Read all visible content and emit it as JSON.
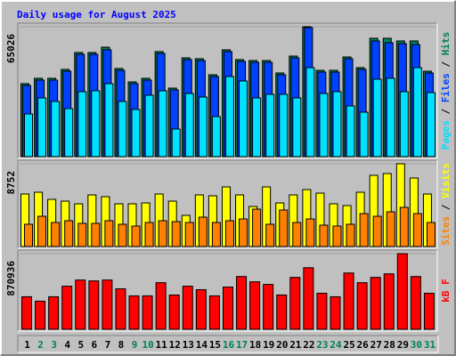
{
  "chart_data": [
    {
      "type": "bar",
      "title": "Daily usage for August 2025",
      "categories": [
        "1",
        "2",
        "3",
        "4",
        "5",
        "6",
        "7",
        "8",
        "9",
        "10",
        "11",
        "12",
        "13",
        "14",
        "15",
        "16",
        "17",
        "18",
        "19",
        "20",
        "21",
        "22",
        "23",
        "24",
        "25",
        "26",
        "27",
        "28",
        "29",
        "30",
        "31"
      ],
      "label_colors": [
        "#000000",
        "#00805c",
        "#00805c",
        "#000000",
        "#000000",
        "#000000",
        "#000000",
        "#000000",
        "#00805c",
        "#00805c",
        "#000000",
        "#000000",
        "#000000",
        "#000000",
        "#000000",
        "#00805c",
        "#00805c",
        "#000000",
        "#000000",
        "#000000",
        "#000000",
        "#000000",
        "#00805c",
        "#00805c",
        "#000000",
        "#000000",
        "#000000",
        "#000000",
        "#000000",
        "#00805c",
        "#00805c"
      ],
      "legend_separator": " / ",
      "ylim": [
        0,
        65026
      ],
      "yticks": [
        65026
      ],
      "series": [
        {
          "name": "Hits",
          "color": "#00805c",
          "values": [
            36520,
            39200,
            39200,
            43650,
            52110,
            52110,
            54780,
            44090,
            37410,
            39200,
            52560,
            34300,
            49440,
            48990,
            40980,
            53450,
            48550,
            48100,
            48100,
            41870,
            50330,
            65026,
            43200,
            43200,
            49880,
            44540,
            59240,
            59240,
            57900,
            57900,
            42760
          ]
        },
        {
          "name": "Files",
          "color": "#0040ff",
          "values": [
            35630,
            38300,
            38300,
            42760,
            51220,
            51220,
            53450,
            43200,
            36520,
            38300,
            51670,
            33400,
            48550,
            48100,
            40090,
            52560,
            47660,
            47210,
            47210,
            40980,
            49440,
            64580,
            42310,
            42310,
            48990,
            43650,
            57900,
            57010,
            56570,
            56120,
            41870
          ]
        },
        {
          "name": "Pages",
          "color": "#00e0ff",
          "values": [
            21380,
            29400,
            27610,
            24050,
            32510,
            32960,
            36520,
            27610,
            23610,
            30730,
            32960,
            13810,
            31620,
            29840,
            20040,
            40090,
            37860,
            29400,
            31180,
            31180,
            29400,
            44540,
            31620,
            32510,
            25390,
            22270,
            38750,
            39200,
            32510,
            44540,
            32070
          ]
        }
      ]
    },
    {
      "type": "bar",
      "ylim": [
        0,
        8752
      ],
      "yticks": [
        8752
      ],
      "series": [
        {
          "name": "Visits",
          "color": "#ffff00",
          "values": [
            5552,
            5740,
            4987,
            4799,
            4517,
            5458,
            5270,
            4517,
            4517,
            4611,
            5552,
            4799,
            3294,
            5458,
            5364,
            6305,
            5458,
            4235,
            6305,
            4611,
            5458,
            6022,
            5646,
            4517,
            4329,
            5740,
            7528,
            7716,
            8752,
            7246,
            5552
          ]
        },
        {
          "name": "Sites",
          "color": "#ff8000",
          "values": [
            2353,
            3199,
            2541,
            2729,
            2447,
            2447,
            2729,
            2353,
            2164,
            2541,
            2729,
            2635,
            2541,
            3105,
            2541,
            2729,
            2917,
            3952,
            2353,
            3858,
            2541,
            2917,
            2258,
            2164,
            2353,
            3482,
            3199,
            3670,
            4140,
            3482,
            2541
          ]
        }
      ]
    },
    {
      "type": "bar",
      "ylim": [
        0,
        870936
      ],
      "yticks": [
        870936
      ],
      "series": [
        {
          "name": "kB F",
          "color": "#ff0000",
          "values": [
            374700,
            324060,
            374700,
            496220,
            567110,
            557000,
            567110,
            465840,
            384830,
            384830,
            536730,
            394950,
            496220,
            455720,
            384830,
            486100,
            607620,
            546860,
            516480,
            394950,
            597490,
            708890,
            415210,
            374700,
            648130,
            536730,
            597490,
            638000,
            870936,
            607620,
            415210
          ]
        }
      ]
    }
  ]
}
